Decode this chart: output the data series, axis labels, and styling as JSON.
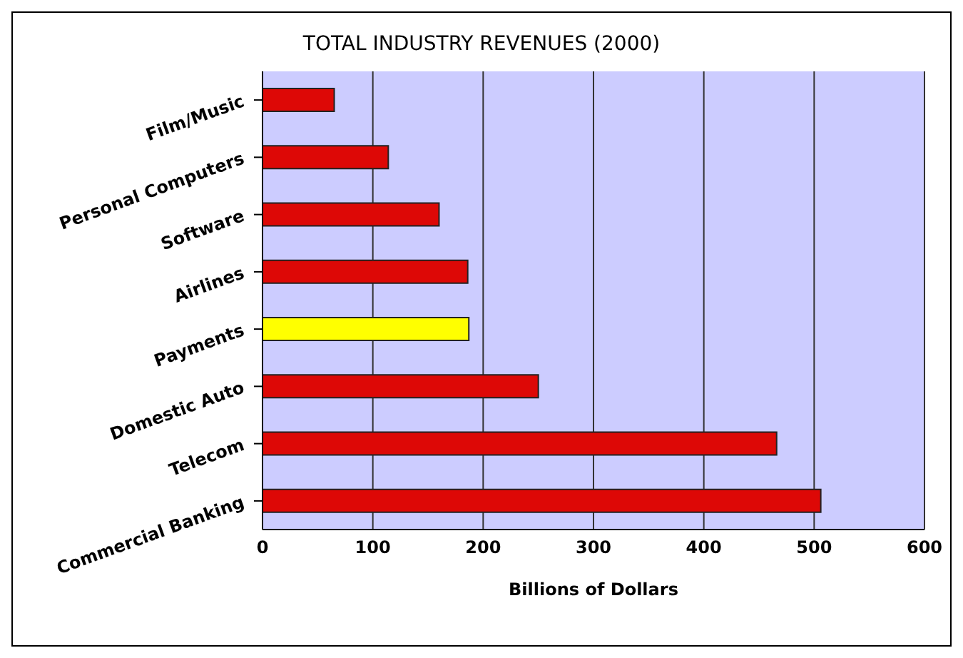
{
  "chart_data": {
    "type": "bar",
    "orientation": "horizontal",
    "title": "TOTAL INDUSTRY REVENUES (2000)",
    "xlabel": "Billions of Dollars",
    "categories": [
      "Film/Music",
      "Personal Computers",
      "Software",
      "Airlines",
      "Payments",
      "Domestic Auto",
      "Telecom",
      "Commercial Banking"
    ],
    "values": [
      65,
      114,
      160,
      186,
      187,
      250,
      466,
      506
    ],
    "colors": [
      "#dd0806",
      "#dd0806",
      "#dd0806",
      "#dd0806",
      "#ffff00",
      "#dd0806",
      "#dd0806",
      "#dd0806"
    ],
    "xlim": [
      0,
      600
    ],
    "xticks": [
      0,
      100,
      200,
      300,
      400,
      500,
      600
    ],
    "grid": "x"
  }
}
